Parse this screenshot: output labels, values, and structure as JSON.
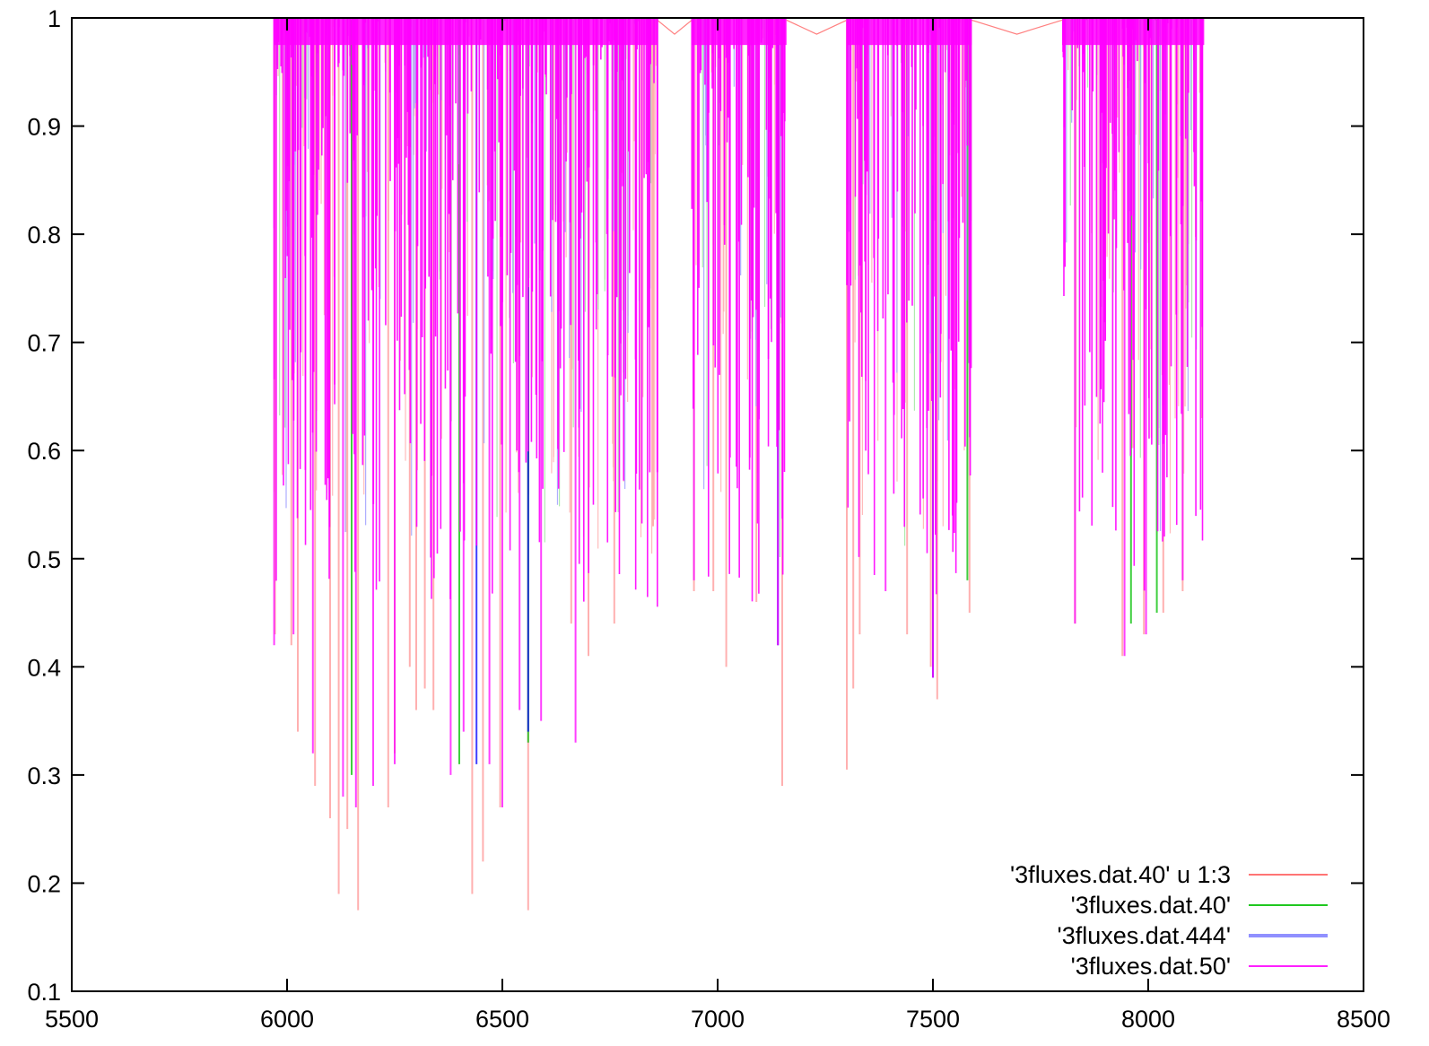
{
  "chart_data": {
    "type": "line",
    "title": "",
    "xlabel": "",
    "ylabel": "",
    "xlim": [
      5500,
      8500
    ],
    "ylim": [
      0.1,
      1
    ],
    "xticks": [
      5500,
      6000,
      6500,
      7000,
      7500,
      8000,
      8500
    ],
    "xtick_labels": [
      "5500",
      "6000",
      "6500",
      "7000",
      "7500",
      "8000",
      "8500"
    ],
    "yticks": [
      0.1,
      0.2,
      0.3,
      0.4,
      0.5,
      0.6,
      0.7,
      0.8,
      0.9,
      1
    ],
    "ytick_labels": [
      "0.1",
      "0.2",
      "0.3",
      "0.4",
      "0.5",
      "0.6",
      "0.7",
      "0.8",
      "0.9",
      "1"
    ],
    "grid": false,
    "legend_position": "bottom-right",
    "segments": [
      [
        5970,
        6860
      ],
      [
        6940,
        7160
      ],
      [
        7300,
        7590
      ],
      [
        7800,
        8130
      ]
    ],
    "series": [
      {
        "name": "'3fluxes.dat.40' u 1:3",
        "color": "#ff0000",
        "deep_lines": [
          {
            "x": 5972,
            "y": 0.43
          },
          {
            "x": 6010,
            "y": 0.42
          },
          {
            "x": 6025,
            "y": 0.34
          },
          {
            "x": 6065,
            "y": 0.29
          },
          {
            "x": 6100,
            "y": 0.26
          },
          {
            "x": 6120,
            "y": 0.19
          },
          {
            "x": 6140,
            "y": 0.25
          },
          {
            "x": 6165,
            "y": 0.175
          },
          {
            "x": 6235,
            "y": 0.27
          },
          {
            "x": 6250,
            "y": 0.32
          },
          {
            "x": 6285,
            "y": 0.4
          },
          {
            "x": 6300,
            "y": 0.36
          },
          {
            "x": 6320,
            "y": 0.38
          },
          {
            "x": 6340,
            "y": 0.36
          },
          {
            "x": 6430,
            "y": 0.19
          },
          {
            "x": 6455,
            "y": 0.22
          },
          {
            "x": 6495,
            "y": 0.27
          },
          {
            "x": 6560,
            "y": 0.175
          },
          {
            "x": 6660,
            "y": 0.44
          },
          {
            "x": 6700,
            "y": 0.41
          },
          {
            "x": 6760,
            "y": 0.44
          },
          {
            "x": 6850,
            "y": 0.53
          },
          {
            "x": 6945,
            "y": 0.47
          },
          {
            "x": 6990,
            "y": 0.47
          },
          {
            "x": 7020,
            "y": 0.4
          },
          {
            "x": 7090,
            "y": 0.46
          },
          {
            "x": 7150,
            "y": 0.29
          },
          {
            "x": 7300,
            "y": 0.305
          },
          {
            "x": 7315,
            "y": 0.38
          },
          {
            "x": 7330,
            "y": 0.43
          },
          {
            "x": 7440,
            "y": 0.43
          },
          {
            "x": 7495,
            "y": 0.4
          },
          {
            "x": 7510,
            "y": 0.37
          },
          {
            "x": 7585,
            "y": 0.45
          },
          {
            "x": 7830,
            "y": 0.44
          },
          {
            "x": 7940,
            "y": 0.41
          },
          {
            "x": 7990,
            "y": 0.43
          },
          {
            "x": 8035,
            "y": 0.45
          },
          {
            "x": 8080,
            "y": 0.47
          },
          {
            "x": 8125,
            "y": 0.63
          }
        ]
      },
      {
        "name": "'3fluxes.dat.40'",
        "color": "#00c000",
        "deep_lines": [
          {
            "x": 6560,
            "y": 0.33
          },
          {
            "x": 6150,
            "y": 0.3
          },
          {
            "x": 6400,
            "y": 0.31
          },
          {
            "x": 7580,
            "y": 0.48
          },
          {
            "x": 7960,
            "y": 0.44
          },
          {
            "x": 8020,
            "y": 0.45
          }
        ]
      },
      {
        "name": "'3fluxes.dat.444'",
        "color": "#0000ff",
        "deep_lines": [
          {
            "x": 6560,
            "y": 0.34
          },
          {
            "x": 6440,
            "y": 0.31
          },
          {
            "x": 7140,
            "y": 0.42
          },
          {
            "x": 7500,
            "y": 0.39
          }
        ]
      },
      {
        "name": "'3fluxes.dat.50'",
        "color": "#ff00ff",
        "deep_lines": [
          {
            "x": 5970,
            "y": 0.42
          },
          {
            "x": 6015,
            "y": 0.43
          },
          {
            "x": 6060,
            "y": 0.32
          },
          {
            "x": 6130,
            "y": 0.28
          },
          {
            "x": 6160,
            "y": 0.27
          },
          {
            "x": 6200,
            "y": 0.29
          },
          {
            "x": 6250,
            "y": 0.31
          },
          {
            "x": 6380,
            "y": 0.3
          },
          {
            "x": 6410,
            "y": 0.34
          },
          {
            "x": 6470,
            "y": 0.31
          },
          {
            "x": 6500,
            "y": 0.27
          },
          {
            "x": 6540,
            "y": 0.36
          },
          {
            "x": 6590,
            "y": 0.35
          },
          {
            "x": 6670,
            "y": 0.33
          },
          {
            "x": 6860,
            "y": 0.58
          },
          {
            "x": 6945,
            "y": 0.48
          },
          {
            "x": 7140,
            "y": 0.42
          },
          {
            "x": 7390,
            "y": 0.47
          },
          {
            "x": 7500,
            "y": 0.39
          },
          {
            "x": 7830,
            "y": 0.44
          },
          {
            "x": 7945,
            "y": 0.41
          },
          {
            "x": 7995,
            "y": 0.43
          },
          {
            "x": 8080,
            "y": 0.48
          }
        ]
      }
    ]
  }
}
